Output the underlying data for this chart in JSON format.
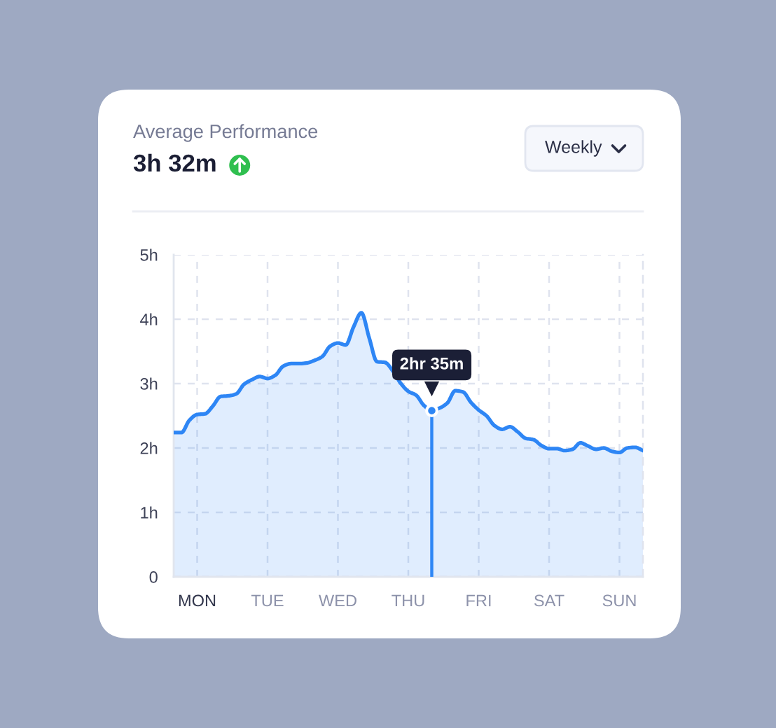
{
  "chart_data": {
    "type": "area",
    "title": "Average Performance",
    "subtitle": "3h 32m",
    "categories": [
      null,
      null,
      null,
      "MON",
      null,
      null,
      null,
      null,
      null,
      null,
      null,
      null,
      "TUE",
      null,
      null,
      null,
      null,
      null,
      null,
      null,
      null,
      "WED",
      null,
      null,
      null,
      null,
      null,
      null,
      null,
      null,
      "THU",
      null,
      null,
      null,
      null,
      null,
      null,
      null,
      null,
      "FRI",
      null,
      null,
      null,
      null,
      null,
      null,
      null,
      null,
      "SAT",
      null,
      null,
      null,
      null,
      null,
      null,
      null,
      null,
      "SUN",
      null,
      null,
      null
    ],
    "series": [
      {
        "color": "#2e86f5",
        "values": [
          2.24,
          2.24,
          2.43,
          2.52,
          2.53,
          2.65,
          2.8,
          2.81,
          2.84,
          2.99,
          3.06,
          3.11,
          3.08,
          3.13,
          3.27,
          3.31,
          3.31,
          3.32,
          3.36,
          3.42,
          3.58,
          3.63,
          3.6,
          3.88,
          4.1,
          3.71,
          3.34,
          3.33,
          3.2,
          3.01,
          2.88,
          2.82,
          2.66,
          2.58,
          2.62,
          2.7,
          2.89,
          2.87,
          2.71,
          2.59,
          2.5,
          2.35,
          2.29,
          2.33,
          2.25,
          2.15,
          2.13,
          2.04,
          1.99,
          1.99,
          1.96,
          1.98,
          2.08,
          2.03,
          1.98,
          2.0,
          1.95,
          1.93,
          2.0,
          2.01,
          1.96
        ]
      }
    ],
    "ylim": [
      0,
      5
    ],
    "yticks": [
      0,
      {
        "value": 1,
        "label": "1h"
      },
      {
        "value": 2,
        "label": "2h"
      },
      {
        "value": 3,
        "label": "3h"
      },
      {
        "value": 4,
        "label": "4h"
      },
      {
        "value": 5,
        "label": "5h"
      }
    ],
    "grid": true,
    "annotations": [
      "Weekly",
      {
        "text": "2hr 35m",
        "y": 2.58
      }
    ]
  }
}
